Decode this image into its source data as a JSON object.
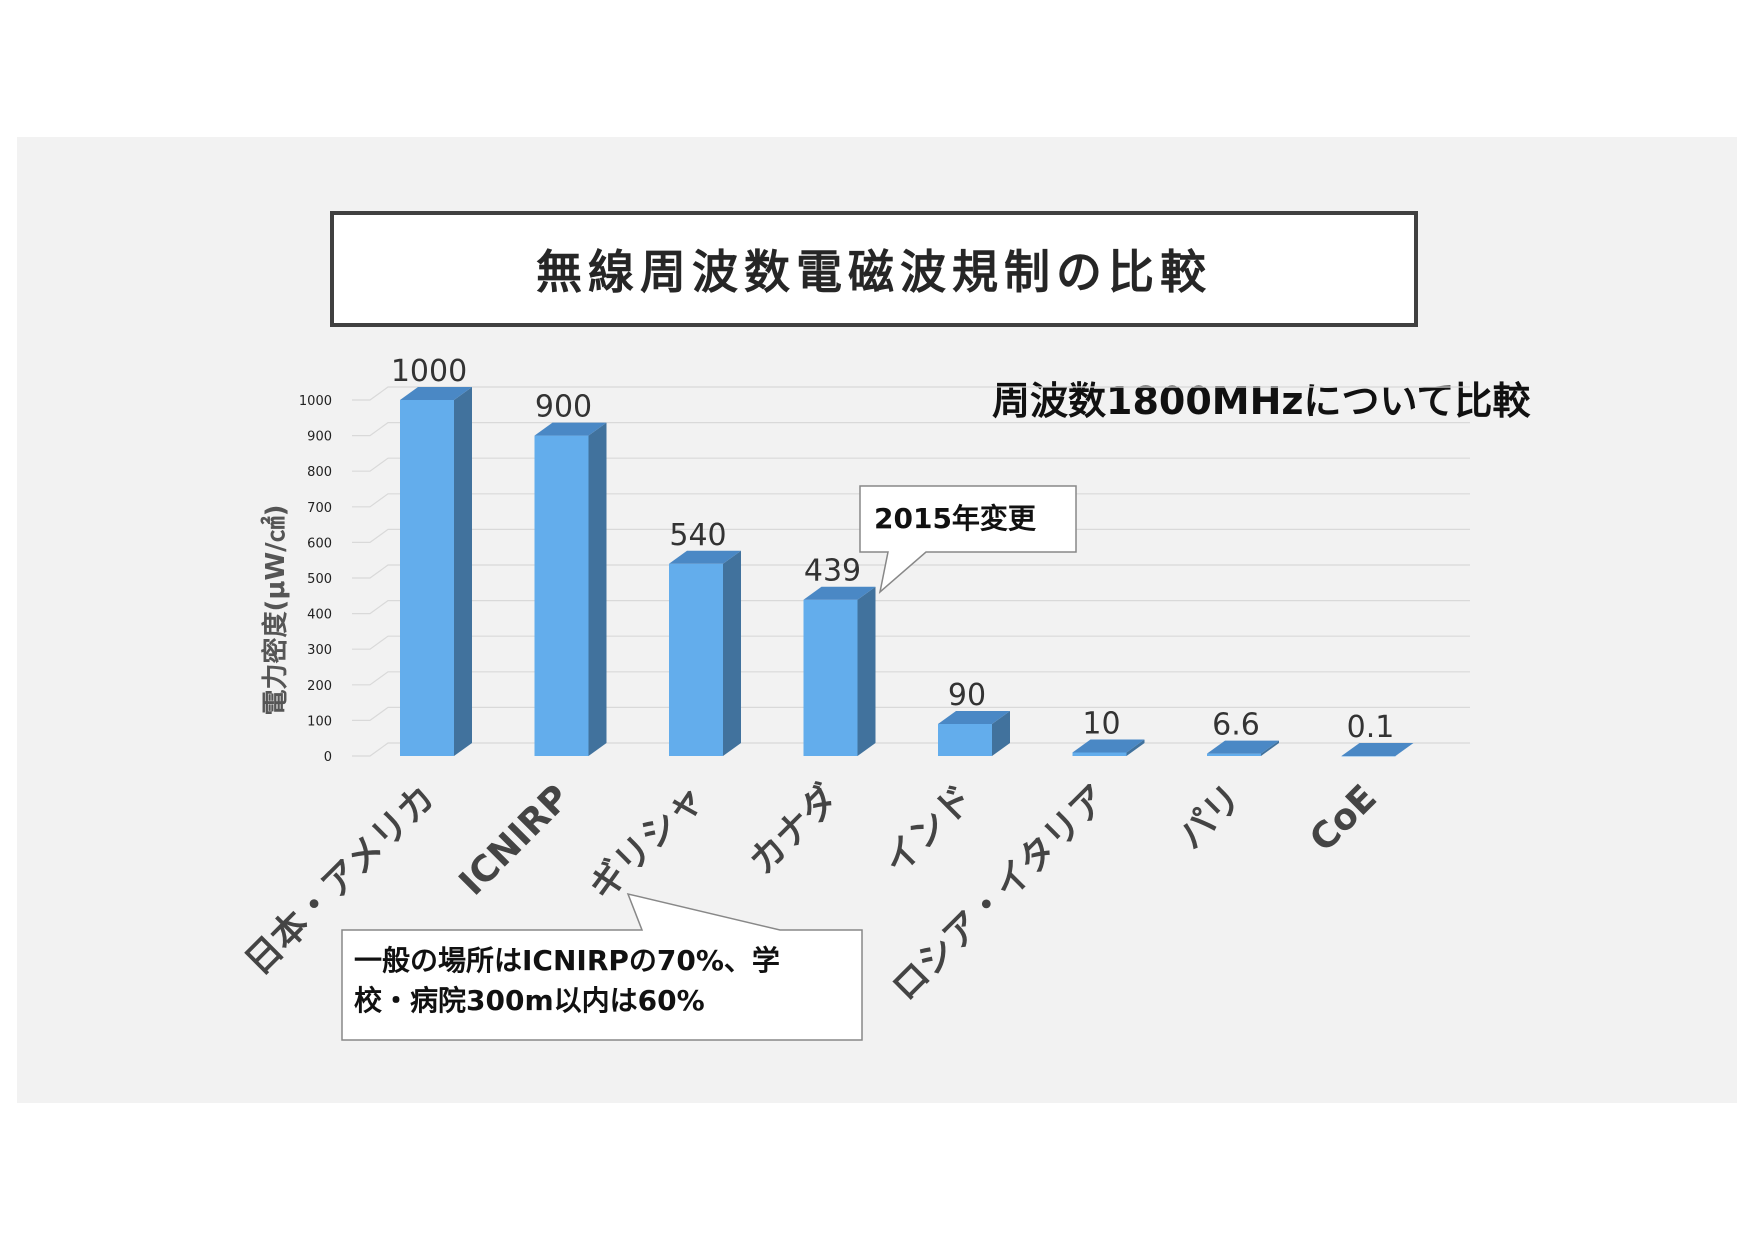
{
  "title": "無線周波数電磁波規制の比較",
  "subtitle": "周波数1800MHzについて比較",
  "callouts": {
    "canada": "2015年変更",
    "icnirp_line1": "一般の場所はICNIRPの70%、学",
    "icnirp_line2": "校・病院300m以内は60%"
  },
  "colors": {
    "bar_front": "#63adec",
    "bar_side": "#41729d",
    "bar_top": "#4a88c5",
    "grid": "#d9d9d9"
  },
  "chart_data": {
    "type": "bar",
    "categories": [
      "日本・アメリカ",
      "ICNIRP",
      "ギリシャ",
      "カナダ",
      "インド",
      "ロシア・イタリア",
      "パリ",
      "CoE"
    ],
    "values": [
      1000,
      900,
      540,
      439,
      90,
      10,
      6.6,
      0.1
    ],
    "value_labels": [
      "1000",
      "900",
      "540",
      "439",
      "90",
      "10",
      "6.6",
      "0.1"
    ],
    "ylabel": "電力密度(μW/㎠)",
    "ylim": [
      0,
      1000
    ],
    "yticks": [
      "0",
      "100",
      "200",
      "300",
      "400",
      "500",
      "600",
      "700",
      "800",
      "900",
      "1000"
    ],
    "grid": true,
    "style": "3d"
  }
}
